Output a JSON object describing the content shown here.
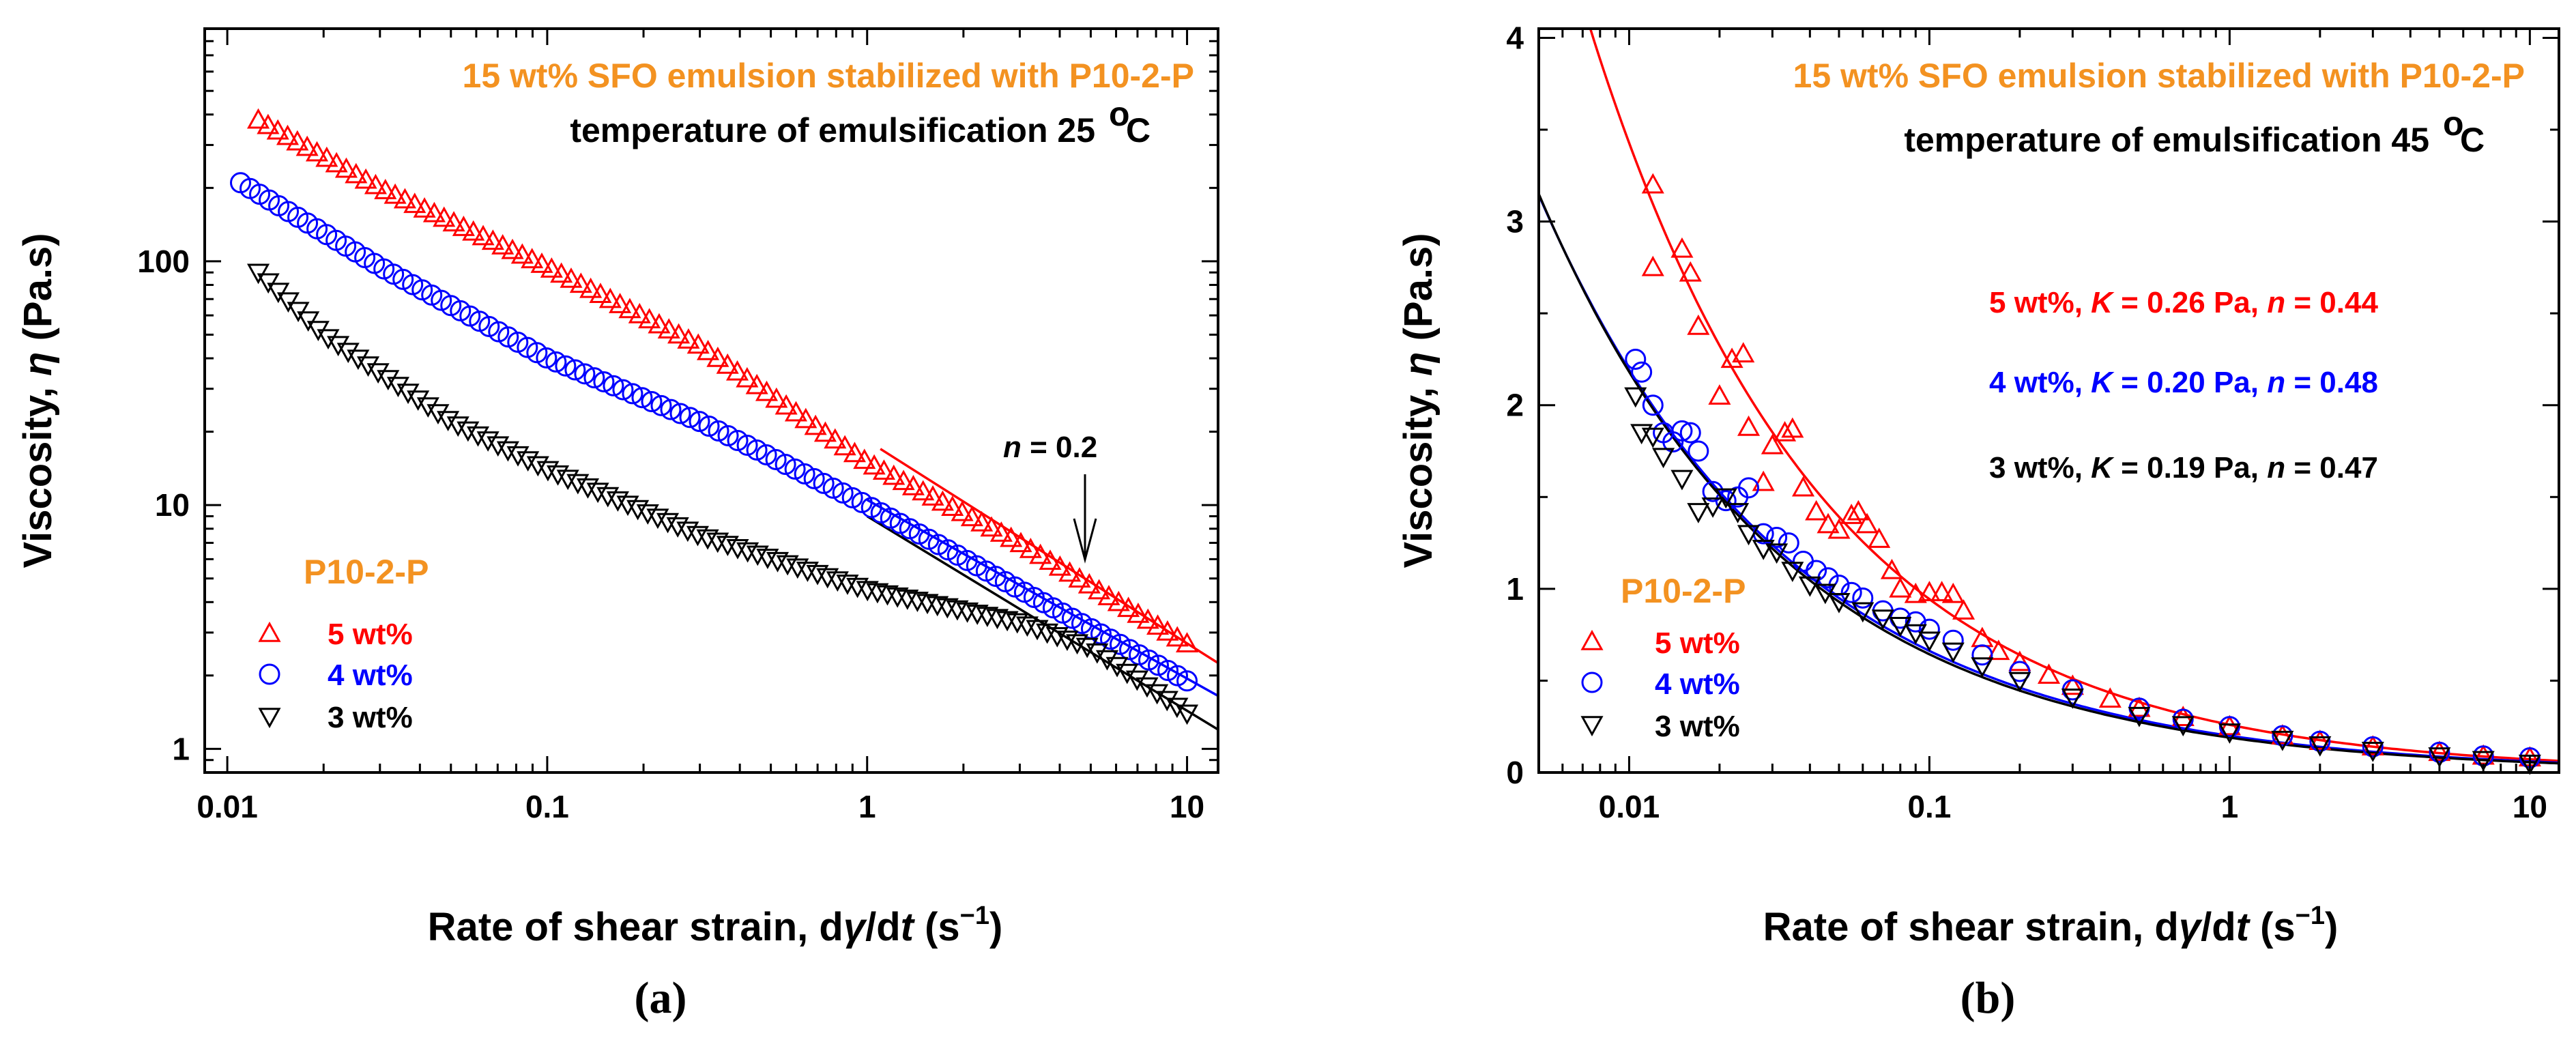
{
  "chart_data": [
    {
      "type": "scatter",
      "panel_label": "(a)",
      "title": "15 wt% SFO emulsion stabilized with P10-2-P",
      "subtitle": "temperature of emulsification 25",
      "subtitle_unit": "C",
      "degree_symbol": "o",
      "xlabel": "Rate of shear strain, dγ/dt (s−1)",
      "ylabel": "Viscosity, η (Pa.s)",
      "xscale": "log",
      "yscale": "log",
      "xlim": [
        0.0085,
        12.5
      ],
      "ylim": [
        0.8,
        900
      ],
      "xticks": [
        {
          "value": 0.01,
          "label": "0.01"
        },
        {
          "value": 0.1,
          "label": "0.1"
        },
        {
          "value": 1,
          "label": "1"
        },
        {
          "value": 10,
          "label": "10"
        }
      ],
      "yticks": [
        {
          "value": 1,
          "label": "1"
        },
        {
          "value": 10,
          "label": "10"
        },
        {
          "value": 100,
          "label": "100"
        }
      ],
      "legend_title": "P10-2-P",
      "legend_position": "bottom-left",
      "series": [
        {
          "name": "5 wt%",
          "color": "#ff0000",
          "marker": "triangle-up",
          "gamma_range": [
            0.0125,
            10
          ],
          "n_points": 96,
          "curve": [
            [
              0.0125,
              380
            ],
            [
              0.03,
              200
            ],
            [
              0.1,
              95
            ],
            [
              0.3,
              45
            ],
            [
              1,
              15
            ],
            [
              3,
              7
            ],
            [
              10,
              2.7
            ]
          ]
        },
        {
          "name": "4 wt%",
          "color": "#0000ff",
          "marker": "circle",
          "gamma_range": [
            0.011,
            10
          ],
          "n_points": 100,
          "curve": [
            [
              0.011,
              210
            ],
            [
              0.03,
              95
            ],
            [
              0.1,
              40
            ],
            [
              0.3,
              22
            ],
            [
              1,
              10
            ],
            [
              3,
              4.5
            ],
            [
              10,
              1.9
            ]
          ]
        },
        {
          "name": "3 wt%",
          "color": "#000000",
          "marker": "triangle-down",
          "gamma_range": [
            0.0125,
            10
          ],
          "n_points": 94,
          "curve": [
            [
              0.0125,
              90
            ],
            [
              0.02,
              50
            ],
            [
              0.05,
              22
            ],
            [
              0.1,
              14
            ],
            [
              0.3,
              7.5
            ],
            [
              1,
              4.5
            ],
            [
              3,
              3.3
            ],
            [
              5,
              2.6
            ],
            [
              10,
              1.4
            ]
          ]
        }
      ],
      "fit_lines": [
        {
          "color": "#ff0000",
          "x": [
            1.1,
            12.5
          ],
          "y": [
            17.0,
            2.25
          ]
        },
        {
          "color": "#0000ff",
          "x": [
            1.0,
            12.5
          ],
          "y": [
            10.5,
            1.65
          ]
        },
        {
          "color": "#000000",
          "x": [
            1.0,
            12.5
          ],
          "y": [
            9.0,
            1.2
          ]
        }
      ],
      "annotation": {
        "text": "n = 0.2",
        "arrow_x": 4.7,
        "arrow_from_y": 11,
        "arrow_to_y": 5.0
      }
    },
    {
      "type": "scatter",
      "panel_label": "(b)",
      "title": "15 wt% SFO emulsion stabilized with P10-2-P",
      "subtitle": "temperature of emulsification 45",
      "subtitle_unit": "C",
      "degree_symbol": "o",
      "xlabel": "Rate of shear strain, dγ/dt (s−1)",
      "ylabel": "Viscosity, η (Pa.s)",
      "xscale": "log",
      "yscale": "linear",
      "xlim": [
        0.005,
        12.5
      ],
      "ylim": [
        0,
        4.05
      ],
      "xticks": [
        {
          "value": 0.01,
          "label": "0.01"
        },
        {
          "value": 0.1,
          "label": "0.1"
        },
        {
          "value": 1,
          "label": "1"
        },
        {
          "value": 10,
          "label": "10"
        }
      ],
      "yticks": [
        {
          "value": 0,
          "label": "0"
        },
        {
          "value": 1,
          "label": "1"
        },
        {
          "value": 2,
          "label": "2"
        },
        {
          "value": 3,
          "label": "3"
        },
        {
          "value": 4,
          "label": "4"
        }
      ],
      "legend_title": "P10-2-P",
      "legend_position": "bottom-left",
      "fit_params": [
        {
          "color": "#ff0000",
          "conc": "5 wt%, ",
          "K": "0.26",
          "n": "0.44"
        },
        {
          "color": "#0000ff",
          "conc": "4 wt%, ",
          "K": "0.20",
          "n": "0.48"
        },
        {
          "color": "#000000",
          "conc": "3 wt%, ",
          "K": "0.19",
          "n": "0.47"
        }
      ],
      "series": [
        {
          "name": "5 wt%",
          "color": "#ff0000",
          "marker": "triangle-up",
          "K": 0.26,
          "n": 0.44,
          "points": [
            [
              0.012,
              3.2
            ],
            [
              0.012,
              2.75
            ],
            [
              0.015,
              2.85
            ],
            [
              0.016,
              2.72
            ],
            [
              0.017,
              2.43
            ],
            [
              0.02,
              2.05
            ],
            [
              0.022,
              2.25
            ],
            [
              0.024,
              2.28
            ],
            [
              0.025,
              1.88
            ],
            [
              0.028,
              1.58
            ],
            [
              0.03,
              1.78
            ],
            [
              0.033,
              1.85
            ],
            [
              0.035,
              1.87
            ],
            [
              0.038,
              1.55
            ],
            [
              0.042,
              1.42
            ],
            [
              0.046,
              1.35
            ],
            [
              0.05,
              1.32
            ],
            [
              0.055,
              1.4
            ],
            [
              0.058,
              1.42
            ],
            [
              0.062,
              1.35
            ],
            [
              0.068,
              1.27
            ],
            [
              0.075,
              1.1
            ],
            [
              0.08,
              1.0
            ],
            [
              0.09,
              0.97
            ],
            [
              0.1,
              0.98
            ],
            [
              0.11,
              0.98
            ],
            [
              0.12,
              0.97
            ],
            [
              0.13,
              0.88
            ],
            [
              0.15,
              0.73
            ],
            [
              0.17,
              0.66
            ],
            [
              0.2,
              0.6
            ],
            [
              0.25,
              0.53
            ],
            [
              0.3,
              0.47
            ],
            [
              0.4,
              0.4
            ],
            [
              0.5,
              0.35
            ],
            [
              0.7,
              0.3
            ],
            [
              1,
              0.25
            ],
            [
              1.5,
              0.2
            ],
            [
              2,
              0.17
            ],
            [
              3,
              0.14
            ],
            [
              5,
              0.11
            ],
            [
              7,
              0.09
            ],
            [
              10,
              0.08
            ]
          ]
        },
        {
          "name": "4 wt%",
          "color": "#0000ff",
          "marker": "circle",
          "K": 0.2,
          "n": 0.48,
          "points": [
            [
              0.0105,
              2.25
            ],
            [
              0.011,
              2.18
            ],
            [
              0.012,
              2.0
            ],
            [
              0.013,
              1.85
            ],
            [
              0.014,
              1.8
            ],
            [
              0.015,
              1.86
            ],
            [
              0.016,
              1.85
            ],
            [
              0.017,
              1.75
            ],
            [
              0.019,
              1.53
            ],
            [
              0.021,
              1.48
            ],
            [
              0.023,
              1.5
            ],
            [
              0.025,
              1.55
            ],
            [
              0.028,
              1.3
            ],
            [
              0.031,
              1.28
            ],
            [
              0.034,
              1.25
            ],
            [
              0.038,
              1.15
            ],
            [
              0.042,
              1.1
            ],
            [
              0.046,
              1.06
            ],
            [
              0.05,
              1.02
            ],
            [
              0.055,
              0.98
            ],
            [
              0.06,
              0.95
            ],
            [
              0.07,
              0.88
            ],
            [
              0.08,
              0.84
            ],
            [
              0.09,
              0.82
            ],
            [
              0.1,
              0.78
            ],
            [
              0.12,
              0.72
            ],
            [
              0.15,
              0.64
            ],
            [
              0.2,
              0.55
            ],
            [
              0.3,
              0.45
            ],
            [
              0.5,
              0.35
            ],
            [
              0.7,
              0.29
            ],
            [
              1,
              0.25
            ],
            [
              1.5,
              0.2
            ],
            [
              2,
              0.17
            ],
            [
              3,
              0.14
            ],
            [
              5,
              0.11
            ],
            [
              7,
              0.09
            ],
            [
              10,
              0.08
            ]
          ]
        },
        {
          "name": "3 wt%",
          "color": "#000000",
          "marker": "triangle-down",
          "K": 0.19,
          "n": 0.47,
          "points": [
            [
              0.0105,
              2.05
            ],
            [
              0.011,
              1.85
            ],
            [
              0.012,
              1.83
            ],
            [
              0.013,
              1.72
            ],
            [
              0.015,
              1.6
            ],
            [
              0.017,
              1.42
            ],
            [
              0.019,
              1.45
            ],
            [
              0.021,
              1.5
            ],
            [
              0.023,
              1.42
            ],
            [
              0.025,
              1.3
            ],
            [
              0.028,
              1.22
            ],
            [
              0.031,
              1.2
            ],
            [
              0.035,
              1.1
            ],
            [
              0.04,
              1.02
            ],
            [
              0.045,
              0.98
            ],
            [
              0.05,
              0.93
            ],
            [
              0.06,
              0.88
            ],
            [
              0.07,
              0.84
            ],
            [
              0.08,
              0.8
            ],
            [
              0.09,
              0.76
            ],
            [
              0.1,
              0.72
            ],
            [
              0.12,
              0.66
            ],
            [
              0.15,
              0.58
            ],
            [
              0.2,
              0.5
            ],
            [
              0.3,
              0.41
            ],
            [
              0.5,
              0.31
            ],
            [
              0.7,
              0.26
            ],
            [
              1,
              0.22
            ],
            [
              1.5,
              0.18
            ],
            [
              2,
              0.15
            ],
            [
              3,
              0.12
            ],
            [
              5,
              0.09
            ],
            [
              7,
              0.07
            ],
            [
              10,
              0.05
            ]
          ]
        }
      ]
    }
  ]
}
